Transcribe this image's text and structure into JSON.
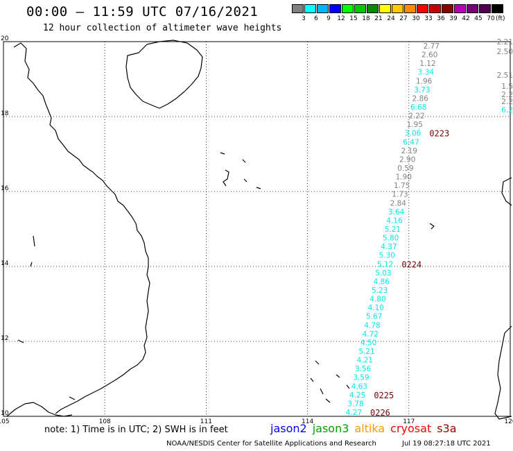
{
  "header": {
    "title": "00:00 — 11:59 UTC 07/16/2021",
    "subtitle": "12 hour collection of altimeter wave heights"
  },
  "legend": {
    "unit": "(ft)",
    "swatches": [
      {
        "color": "#808080",
        "label": "3"
      },
      {
        "color": "#00ffff",
        "label": "6"
      },
      {
        "color": "#00b4ff",
        "label": "9"
      },
      {
        "color": "#0000ff",
        "label": "12"
      },
      {
        "color": "#00ff00",
        "label": "15"
      },
      {
        "color": "#00c800",
        "label": "18"
      },
      {
        "color": "#008c00",
        "label": "21"
      },
      {
        "color": "#ffff00",
        "label": "24"
      },
      {
        "color": "#ffc800",
        "label": "27"
      },
      {
        "color": "#ff8c00",
        "label": "30"
      },
      {
        "color": "#ff0000",
        "label": "33"
      },
      {
        "color": "#c80000",
        "label": "36"
      },
      {
        "color": "#8c0000",
        "label": "39"
      },
      {
        "color": "#b400b4",
        "label": "42"
      },
      {
        "color": "#780078",
        "label": "45"
      },
      {
        "color": "#500050",
        "label": "70"
      },
      {
        "color": "#000000",
        "label": ""
      }
    ]
  },
  "map": {
    "lon_range": [
      105,
      120
    ],
    "lat_range": [
      10,
      20
    ],
    "x_ticks": [
      "105",
      "108",
      "111",
      "114",
      "117",
      "120"
    ],
    "y_ticks": [
      "20",
      "18",
      "16",
      "14",
      "12",
      "10"
    ],
    "gray_color": "#808080",
    "cyan_color": "#00e6e6",
    "track_values": [
      {
        "v": "2.77",
        "c": "g"
      },
      {
        "v": "2.60",
        "c": "g"
      },
      {
        "v": "1.12",
        "c": "g"
      },
      {
        "v": "3.34",
        "c": "c"
      },
      {
        "v": "1.96",
        "c": "g"
      },
      {
        "v": "3.73",
        "c": "c"
      },
      {
        "v": "2.86",
        "c": "g"
      },
      {
        "v": "6.68",
        "c": "c"
      },
      {
        "v": "2.22",
        "c": "g"
      },
      {
        "v": "1.95",
        "c": "g"
      },
      {
        "v": "3.06",
        "c": "c"
      },
      {
        "v": "6.47",
        "c": "c"
      },
      {
        "v": "2.19",
        "c": "g"
      },
      {
        "v": "2.90",
        "c": "g"
      },
      {
        "v": "0.59",
        "c": "g"
      },
      {
        "v": "1.90",
        "c": "g"
      },
      {
        "v": "1.75",
        "c": "g"
      },
      {
        "v": "1.73",
        "c": "g"
      },
      {
        "v": "2.84",
        "c": "g"
      },
      {
        "v": "3.64",
        "c": "c"
      },
      {
        "v": "4.16",
        "c": "c"
      },
      {
        "v": "5.21",
        "c": "c"
      },
      {
        "v": "5.80",
        "c": "c"
      },
      {
        "v": "4.37",
        "c": "c"
      },
      {
        "v": "5.30",
        "c": "c"
      },
      {
        "v": "5.12",
        "c": "c"
      },
      {
        "v": "5.03",
        "c": "c"
      },
      {
        "v": "4.86",
        "c": "c"
      },
      {
        "v": "5.23",
        "c": "c"
      },
      {
        "v": "4.80",
        "c": "c"
      },
      {
        "v": "4.10",
        "c": "c"
      },
      {
        "v": "5.67",
        "c": "c"
      },
      {
        "v": "4.78",
        "c": "c"
      },
      {
        "v": "4.72",
        "c": "c"
      },
      {
        "v": "4.50",
        "c": "c"
      },
      {
        "v": "5.21",
        "c": "c"
      },
      {
        "v": "4.21",
        "c": "c"
      },
      {
        "v": "3.56",
        "c": "c"
      },
      {
        "v": "3.59",
        "c": "c"
      },
      {
        "v": "4.63",
        "c": "c"
      },
      {
        "v": "4.25",
        "c": "c"
      },
      {
        "v": "3.78",
        "c": "c"
      },
      {
        "v": "4.27",
        "c": "c"
      }
    ],
    "pass_labels": [
      {
        "text": "0223",
        "index": 10
      },
      {
        "text": "0224",
        "index": 25
      },
      {
        "text": "0225",
        "index": 40
      },
      {
        "text": "0226",
        "index": 42
      }
    ],
    "edge_values": [
      {
        "v": "2.21",
        "c": "g"
      },
      {
        "v": "2.50",
        "c": "g"
      },
      {
        "v": "2.51",
        "c": "g"
      },
      {
        "v": "1.5",
        "c": "g"
      },
      {
        "v": "2.2",
        "c": "g"
      },
      {
        "v": "2.2",
        "c": "g"
      },
      {
        "v": "6.2",
        "c": "c"
      }
    ]
  },
  "footer": {
    "note": "note: 1) Time is in UTC; 2) SWH is in feet",
    "satellites": [
      {
        "name": "jason2",
        "color": "#0000ff"
      },
      {
        "name": "jason3",
        "color": "#00a000"
      },
      {
        "name": "altika",
        "color": "#ff9900"
      },
      {
        "name": "cryosat",
        "color": "#ff0000"
      },
      {
        "name": "s3a",
        "color": "#a00000"
      }
    ],
    "credit": "NOAA/NESDIS Center for Satellite Applications and Research",
    "timestamp": "Jul 19 08:27:18 UTC 2021"
  }
}
